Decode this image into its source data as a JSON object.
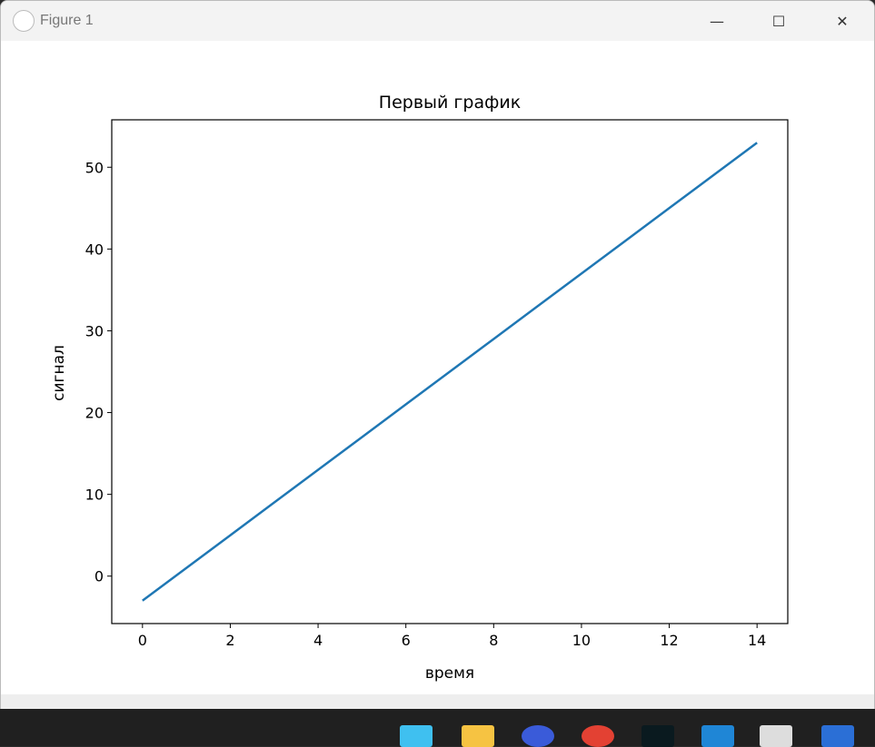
{
  "window": {
    "title": "Figure 1",
    "minimize": "—",
    "maximize": "☐",
    "close": "✕"
  },
  "taskbar": {
    "icons": [
      "windows-start-icon",
      "file-explorer-icon",
      "todo-icon",
      "chrome-icon",
      "app-icon",
      "vscode-icon",
      "python-file-icon",
      "powershell-icon"
    ]
  },
  "chart_data": {
    "type": "line",
    "title": "Первый график",
    "xlabel": "время",
    "ylabel": "сигнал",
    "x": [
      0,
      1,
      2,
      3,
      4,
      5,
      6,
      7,
      8,
      9,
      10,
      11,
      12,
      13,
      14
    ],
    "series": [
      {
        "values": [
          -3,
          1,
          5,
          9,
          13,
          17,
          21,
          25,
          29,
          33,
          37,
          41,
          45,
          49,
          53
        ],
        "color": "#1f77b4"
      }
    ],
    "xlim": [
      -0.7,
      14.7
    ],
    "ylim": [
      -5.8,
      55.8
    ],
    "xticks": [
      "0",
      "2",
      "4",
      "6",
      "8",
      "10",
      "12",
      "14"
    ],
    "yticks": [
      "0",
      "10",
      "20",
      "30",
      "40",
      "50"
    ],
    "grid": false
  }
}
